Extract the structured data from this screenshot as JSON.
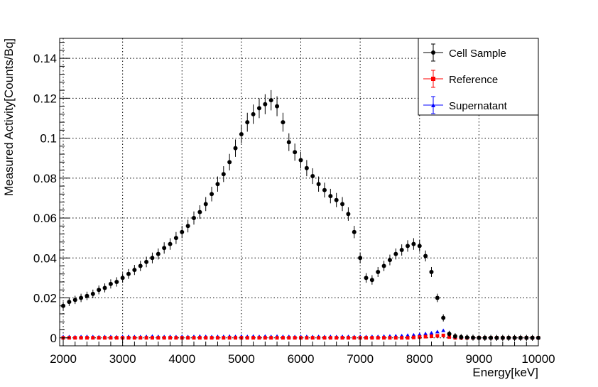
{
  "chart_data": {
    "type": "scatter",
    "xlabel": "Energy[keV]",
    "ylabel": "Measured Activity[Counts/Bq]",
    "xlim": [
      1940,
      10000
    ],
    "ylim": [
      -0.004,
      0.15
    ],
    "grid": true,
    "legend_position": "top-right",
    "x_ticks": [
      "2000",
      "3000",
      "4000",
      "5000",
      "6000",
      "7000",
      "8000",
      "9000",
      "10000"
    ],
    "x_tick_values": [
      2000,
      3000,
      4000,
      5000,
      6000,
      7000,
      8000,
      9000,
      10000
    ],
    "y_ticks": [
      "0",
      "0.02",
      "0.04",
      "0.06",
      "0.08",
      "0.1",
      "0.12",
      "0.14"
    ],
    "y_tick_values": [
      0,
      0.02,
      0.04,
      0.06,
      0.08,
      0.1,
      0.12,
      0.14
    ],
    "x_start": 2000,
    "x_step": 100,
    "series": [
      {
        "name": "Cell Sample",
        "color": "#000000",
        "marker": "circle",
        "values": [
          0.016,
          0.018,
          0.019,
          0.02,
          0.021,
          0.022,
          0.024,
          0.025,
          0.027,
          0.028,
          0.03,
          0.032,
          0.034,
          0.036,
          0.038,
          0.04,
          0.042,
          0.045,
          0.047,
          0.05,
          0.053,
          0.056,
          0.06,
          0.063,
          0.067,
          0.072,
          0.077,
          0.082,
          0.088,
          0.095,
          0.102,
          0.108,
          0.112,
          0.115,
          0.117,
          0.119,
          0.116,
          0.108,
          0.098,
          0.093,
          0.089,
          0.085,
          0.081,
          0.077,
          0.074,
          0.071,
          0.069,
          0.067,
          0.062,
          0.053,
          0.04,
          0.03,
          0.029,
          0.033,
          0.036,
          0.039,
          0.042,
          0.044,
          0.046,
          0.047,
          0.046,
          0.041,
          0.033,
          0.02,
          0.01,
          0.002,
          0.0008,
          0.0004,
          0.0002,
          0.0001,
          0,
          0,
          0,
          0,
          0,
          0,
          0,
          0,
          0,
          0,
          0
        ]
      },
      {
        "name": "Reference",
        "color": "#ff0000",
        "marker": "square",
        "values": [
          0,
          0,
          0,
          0,
          0,
          0,
          0,
          0,
          0,
          0,
          0,
          0,
          0,
          0,
          0,
          0,
          0,
          0,
          0,
          0,
          0,
          0,
          0,
          0,
          0,
          0,
          0,
          0,
          0,
          0,
          0,
          0,
          0,
          0,
          0,
          0,
          0,
          0,
          0,
          0,
          0,
          0,
          0,
          0,
          0,
          0,
          0,
          0,
          0,
          0,
          0,
          0,
          0,
          0,
          0,
          0,
          0,
          0,
          0,
          0.0002,
          0.0004,
          0.0006,
          0.0008,
          0.001,
          0.0012,
          0.0004,
          0,
          0,
          0,
          0,
          0,
          0,
          0,
          0,
          0,
          0,
          0,
          0,
          0,
          0,
          0
        ]
      },
      {
        "name": "Supernatant",
        "color": "#0000ff",
        "marker": "triangle",
        "values": [
          0.0005,
          0.0005,
          0.0004,
          0.0005,
          0.0006,
          0.0005,
          0.0004,
          0.0005,
          0.0005,
          0.0004,
          0.0005,
          0.0006,
          0.0005,
          0.0005,
          0.0006,
          0.0007,
          0.0006,
          0.0005,
          0.0006,
          0.0005,
          0.0006,
          0.0005,
          0.0006,
          0.0007,
          0.0006,
          0.0005,
          0.0006,
          0.0006,
          0.0007,
          0.0006,
          0.0007,
          0.0006,
          0.0007,
          0.0006,
          0.0007,
          0.0006,
          0.0007,
          0.0006,
          0.0006,
          0.0005,
          0.0006,
          0.0006,
          0.0005,
          0.0006,
          0.0005,
          0.0006,
          0.0005,
          0.0006,
          0.0006,
          0.0005,
          0.0006,
          0.0005,
          0.0006,
          0.0006,
          0.0007,
          0.0008,
          0.0009,
          0.001,
          0.0012,
          0.0014,
          0.0016,
          0.002,
          0.0024,
          0.003,
          0.0036,
          0.0008,
          0.0004,
          0.0003,
          0.0003,
          0.0002,
          0.0002,
          0.0002,
          0.0002,
          0.0002,
          0.0002,
          0.0002,
          0.0002,
          0.0002,
          0.0002,
          0.0002,
          0.0002
        ]
      }
    ]
  }
}
